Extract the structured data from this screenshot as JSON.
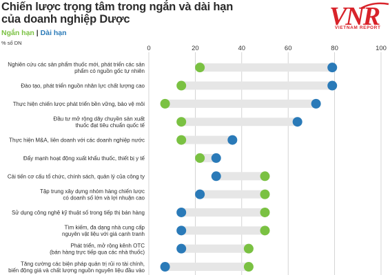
{
  "header": {
    "title_line1": "Chiến lược trọng tâm trong ngắn và dài hạn",
    "title_line2": "của doanh nghiệp Dược",
    "unit": "% số DN"
  },
  "legend": {
    "short": "Ngắn hạn",
    "separator": "|",
    "long": "Dài hạn"
  },
  "logo": {
    "text": "VNR",
    "subtitle": "VIETNAM REPORT"
  },
  "colors": {
    "short": "#7ac142",
    "long": "#2a7ab8",
    "bar": "#e6e6e6",
    "logo": "#d8232a"
  },
  "chart_data": {
    "type": "dumbbell",
    "xlim": [
      0,
      100
    ],
    "x_ticks": [
      0,
      20,
      40,
      60,
      80,
      100
    ],
    "grid": true,
    "series": [
      {
        "name": "Ngắn hạn",
        "color": "#7ac142"
      },
      {
        "name": "Dài hạn",
        "color": "#2a7ab8"
      }
    ],
    "categories": [
      {
        "lines": [
          "Nghiên cứu các sản phẩm thuốc mới, phát triển các sản",
          "phẩm có nguồn gốc tự nhiên"
        ],
        "short": 22,
        "long": 79
      },
      {
        "lines": [
          "Đào tạo, phát triển nguồn nhân lực chất lượng cao"
        ],
        "short": 14,
        "long": 79
      },
      {
        "lines": [
          "Thực hiện chiến lược phát triển bền vững, bảo vệ môi"
        ],
        "short": 7,
        "long": 72
      },
      {
        "lines": [
          "Đầu tư mở rộng dây chuyền sản xuất",
          "thuốc đạt tiêu chuẩn quốc tế"
        ],
        "short": 14,
        "long": 64
      },
      {
        "lines": [
          "Thực hiện M&A, liên doanh với các doanh nghiệp nước"
        ],
        "short": 14,
        "long": 36
      },
      {
        "lines": [
          "Đẩy mạnh hoạt động xuất khẩu thuốc, thiết bị y tế"
        ],
        "short": 22,
        "long": 29
      },
      {
        "lines": [
          "Cải tiến cơ cấu tổ chức, chính sách, quản lý của công ty"
        ],
        "short": 50,
        "long": 29
      },
      {
        "lines": [
          "Tập trung xây dựng nhóm hàng chiến lược",
          "có doanh số lớn và lợi nhuận cao"
        ],
        "short": 50,
        "long": 22
      },
      {
        "lines": [
          "Sử dụng công nghệ kỹ thuật số trong tiếp thị bán hàng"
        ],
        "short": 50,
        "long": 14
      },
      {
        "lines": [
          "Tìm kiếm, đa dạng nhà cung cấp",
          "nguyên vật liệu với giá cạnh tranh"
        ],
        "short": 50,
        "long": 14
      },
      {
        "lines": [
          "Phát triển, mở rộng kênh OTC",
          "(bán hàng trực tiếp qua các nhà thuốc)"
        ],
        "short": 43,
        "long": 14
      },
      {
        "lines": [
          "Tăng cường các biện pháp quản trị rủi ro tài chính,",
          "biến động giá và chất lượng nguồn nguyên liệu đầu vào"
        ],
        "short": 43,
        "long": 7
      }
    ]
  }
}
